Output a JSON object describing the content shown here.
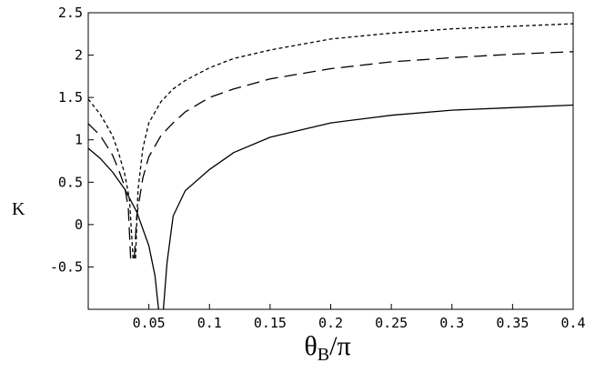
{
  "chart_data": {
    "type": "line",
    "title": "",
    "xlabel": "θ_B/π",
    "ylabel": "K",
    "xlim": [
      0,
      0.4
    ],
    "ylim": [
      -1,
      2.5
    ],
    "x_ticks": [
      0.05,
      0.1,
      0.15,
      0.2,
      0.25,
      0.3,
      0.35,
      0.4
    ],
    "x_tick_labels": [
      "0.05",
      "0.1",
      "0.15",
      "0.2",
      "0.25",
      "0.3",
      "0.35",
      "0.4"
    ],
    "y_ticks": [
      -0.5,
      0,
      0.5,
      1,
      1.5,
      2,
      2.5
    ],
    "y_tick_labels": [
      "-0.5",
      "0",
      "0.5",
      "1",
      "1.5",
      "2",
      "2.5"
    ],
    "grid": false,
    "legend": "none",
    "series": [
      {
        "style": "solid",
        "segments": [
          {
            "x": [
              0,
              0.01,
              0.02,
              0.03,
              0.04,
              0.05,
              0.055,
              0.058
            ],
            "y": [
              0.9,
              0.78,
              0.62,
              0.42,
              0.15,
              -0.25,
              -0.6,
              -1.0
            ]
          },
          {
            "x": [
              0.062,
              0.065,
              0.07,
              0.08,
              0.1,
              0.12,
              0.15,
              0.2,
              0.25,
              0.3,
              0.35,
              0.4
            ],
            "y": [
              -1.0,
              -0.45,
              0.1,
              0.4,
              0.65,
              0.85,
              1.03,
              1.2,
              1.29,
              1.35,
              1.38,
              1.41
            ]
          }
        ]
      },
      {
        "style": "long-dash",
        "segments": [
          {
            "x": [
              0,
              0.01,
              0.02,
              0.025,
              0.03,
              0.033,
              0.035
            ],
            "y": [
              1.19,
              1.05,
              0.82,
              0.65,
              0.45,
              0.2,
              -0.4
            ]
          },
          {
            "x": [
              0.038,
              0.04,
              0.045,
              0.05,
              0.06,
              0.07,
              0.08,
              0.1,
              0.12,
              0.15,
              0.2,
              0.25,
              0.3,
              0.35,
              0.4
            ],
            "y": [
              -0.4,
              0.1,
              0.55,
              0.8,
              1.05,
              1.2,
              1.33,
              1.5,
              1.6,
              1.72,
              1.84,
              1.92,
              1.97,
              2.01,
              2.04
            ]
          }
        ]
      },
      {
        "style": "short-dash",
        "segments": [
          {
            "x": [
              0,
              0.01,
              0.02,
              0.025,
              0.03,
              0.034,
              0.037
            ],
            "y": [
              1.48,
              1.3,
              1.05,
              0.85,
              0.6,
              0.3,
              -0.4
            ]
          },
          {
            "x": [
              0.039,
              0.041,
              0.045,
              0.05,
              0.06,
              0.07,
              0.08,
              0.1,
              0.12,
              0.15,
              0.2,
              0.25,
              0.3,
              0.35,
              0.4
            ],
            "y": [
              -0.4,
              0.4,
              0.9,
              1.2,
              1.45,
              1.6,
              1.7,
              1.85,
              1.96,
              2.06,
              2.19,
              2.26,
              2.31,
              2.34,
              2.37
            ]
          }
        ]
      }
    ]
  }
}
